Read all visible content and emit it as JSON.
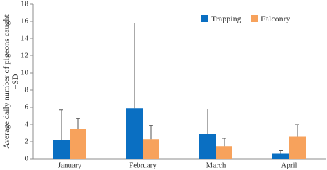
{
  "chart_data": {
    "type": "bar",
    "y_label": [
      "Average daily number of pigeons caught",
      "+SD"
    ],
    "categories": [
      "January",
      "February",
      "March",
      "April"
    ],
    "series": [
      {
        "name": "Trapping",
        "color": "#0a6fc2",
        "values": [
          2.2,
          5.9,
          2.9,
          0.6
        ],
        "errors": [
          3.5,
          9.9,
          2.9,
          0.4
        ]
      },
      {
        "name": "Falconry",
        "color": "#f7a25c",
        "values": [
          3.5,
          2.3,
          1.5,
          2.6
        ],
        "errors": [
          1.2,
          1.6,
          0.9,
          1.4
        ]
      }
    ],
    "ylim": [
      0,
      18
    ],
    "yticks": [
      0,
      2,
      4,
      6,
      8,
      10,
      12,
      14,
      16,
      18
    ],
    "legend": "top-right"
  }
}
